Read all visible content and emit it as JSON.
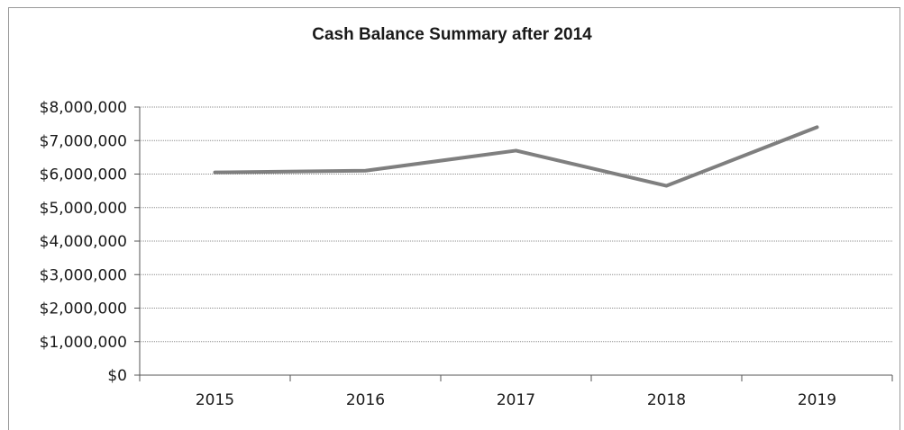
{
  "chart_data": {
    "type": "line",
    "title": "Cash Balance Summary after 2014",
    "xlabel": "",
    "ylabel": "",
    "categories": [
      "2015",
      "2016",
      "2017",
      "2018",
      "2019"
    ],
    "series": [
      {
        "values": [
          6050000,
          6100000,
          6700000,
          5650000,
          7400000
        ],
        "color": "#7f7f7f"
      }
    ],
    "ylim": [
      0,
      8000000
    ],
    "ytick_values": [
      0,
      1000000,
      2000000,
      3000000,
      4000000,
      5000000,
      6000000,
      7000000,
      8000000
    ],
    "ytick_labels": [
      "$0",
      "$1,000,000",
      "$2,000,000",
      "$3,000,000",
      "$4,000,000",
      "$5,000,000",
      "$6,000,000",
      "$7,000,000",
      "$8,000,000"
    ],
    "grid": true,
    "legend": "none",
    "colors": {
      "line": "#7f7f7f",
      "grid": "#8c8c8c",
      "axis": "#555555"
    }
  }
}
